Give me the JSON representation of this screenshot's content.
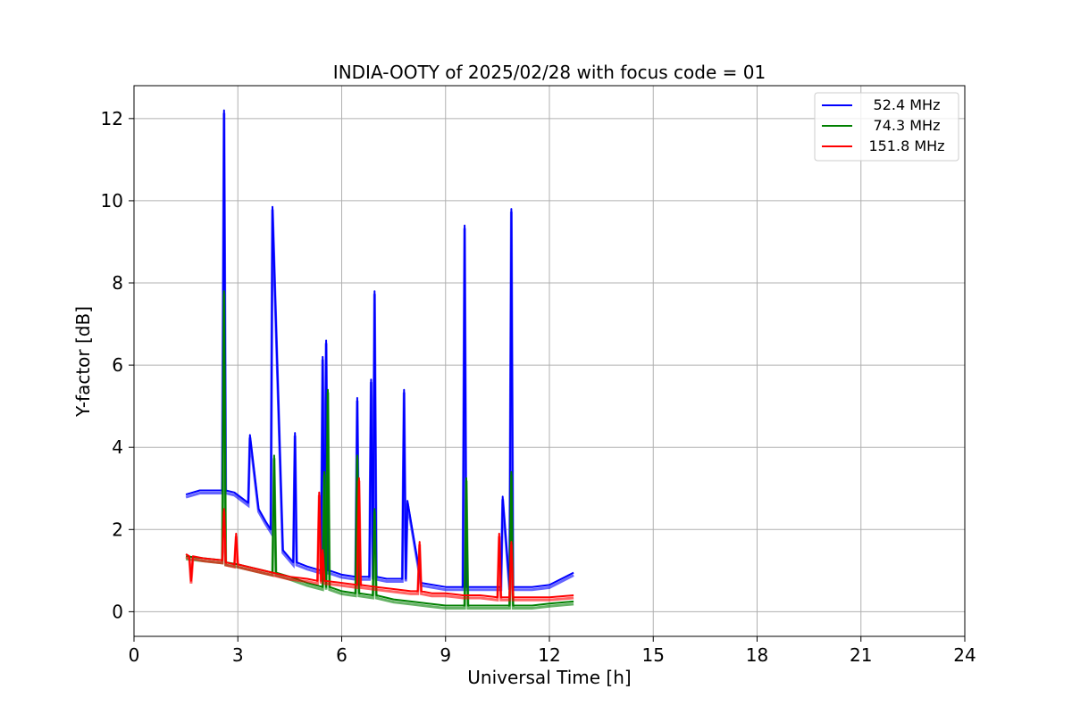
{
  "chart_data": {
    "type": "line",
    "title": "INDIA-OOTY of 2025/02/28 with focus code = 01",
    "xlabel": "Universal Time [h]",
    "ylabel": "Y-factor [dB]",
    "xlim": [
      0,
      24
    ],
    "ylim": [
      -0.6,
      12.8
    ],
    "xticks": [
      0,
      3,
      6,
      9,
      12,
      15,
      18,
      21,
      24
    ],
    "yticks": [
      0,
      2,
      4,
      6,
      8,
      10,
      12
    ],
    "grid": true,
    "legend_position": "top-right",
    "series": [
      {
        "name": "52.4 MHz",
        "color": "#0000ff",
        "x": [
          1.5,
          1.9,
          2.2,
          2.55,
          2.6,
          2.65,
          2.9,
          3.3,
          3.35,
          3.6,
          3.8,
          3.95,
          4.0,
          4.3,
          4.6,
          4.65,
          4.7,
          5.0,
          5.4,
          5.45,
          5.5,
          5.55,
          5.6,
          5.65,
          6.0,
          6.4,
          6.45,
          6.5,
          6.8,
          6.85,
          6.9,
          6.95,
          7.0,
          7.3,
          7.75,
          7.8,
          7.85,
          7.9,
          8.3,
          9.0,
          9.5,
          9.55,
          9.6,
          9.65,
          10.0,
          10.6,
          10.65,
          10.85,
          10.9,
          10.95,
          11.5,
          12.0,
          12.7
        ],
        "y": [
          2.85,
          2.95,
          2.95,
          2.95,
          12.2,
          2.95,
          2.9,
          2.65,
          4.3,
          2.5,
          2.2,
          2.0,
          9.85,
          1.5,
          1.2,
          4.35,
          1.2,
          1.1,
          1.0,
          6.2,
          1.0,
          6.6,
          1.0,
          1.0,
          0.9,
          0.85,
          5.2,
          0.85,
          0.85,
          5.65,
          0.85,
          7.8,
          0.85,
          0.8,
          0.8,
          5.4,
          0.8,
          2.7,
          0.7,
          0.6,
          0.6,
          9.4,
          0.6,
          0.6,
          0.6,
          0.6,
          2.8,
          0.6,
          9.8,
          0.6,
          0.6,
          0.65,
          0.95
        ]
      },
      {
        "name": "74.3 MHz",
        "color": "#008000",
        "x": [
          1.5,
          2.0,
          2.55,
          2.6,
          2.65,
          3.0,
          3.5,
          4.0,
          4.05,
          4.1,
          4.5,
          5.0,
          5.45,
          5.5,
          5.55,
          5.6,
          5.65,
          6.0,
          6.4,
          6.45,
          6.5,
          6.9,
          6.95,
          7.0,
          7.5,
          8.0,
          8.5,
          9.0,
          9.55,
          9.6,
          9.65,
          10.0,
          10.5,
          10.85,
          10.9,
          10.95,
          11.5,
          12.0,
          12.7
        ],
        "y": [
          1.35,
          1.3,
          1.25,
          7.8,
          1.2,
          1.15,
          1.05,
          0.95,
          3.8,
          0.95,
          0.85,
          0.7,
          0.6,
          3.4,
          0.6,
          5.4,
          0.6,
          0.5,
          0.45,
          3.8,
          0.45,
          0.4,
          2.5,
          0.4,
          0.3,
          0.25,
          0.2,
          0.15,
          0.15,
          3.25,
          0.15,
          0.15,
          0.15,
          0.15,
          3.4,
          0.15,
          0.15,
          0.2,
          0.25
        ]
      },
      {
        "name": "151.8 MHz",
        "color": "#ff0000",
        "x": [
          1.5,
          1.6,
          1.65,
          1.7,
          2.0,
          2.55,
          2.6,
          2.65,
          2.9,
          2.95,
          3.0,
          3.5,
          4.0,
          4.5,
          5.0,
          5.3,
          5.35,
          5.4,
          5.45,
          5.5,
          6.0,
          6.45,
          6.5,
          6.55,
          7.0,
          7.5,
          8.0,
          8.2,
          8.25,
          8.3,
          8.6,
          9.0,
          9.5,
          10.0,
          10.5,
          10.55,
          10.6,
          10.85,
          10.9,
          10.95,
          11.5,
          12.0,
          12.7
        ],
        "y": [
          1.4,
          1.35,
          0.75,
          1.35,
          1.3,
          1.25,
          2.5,
          1.2,
          1.15,
          1.9,
          1.15,
          1.05,
          0.95,
          0.85,
          0.8,
          0.75,
          2.9,
          0.75,
          1.5,
          0.75,
          0.7,
          0.65,
          3.25,
          0.65,
          0.6,
          0.55,
          0.5,
          0.5,
          1.7,
          0.5,
          0.45,
          0.45,
          0.4,
          0.4,
          0.35,
          1.9,
          0.35,
          0.35,
          1.7,
          0.35,
          0.35,
          0.35,
          0.4
        ]
      }
    ]
  }
}
